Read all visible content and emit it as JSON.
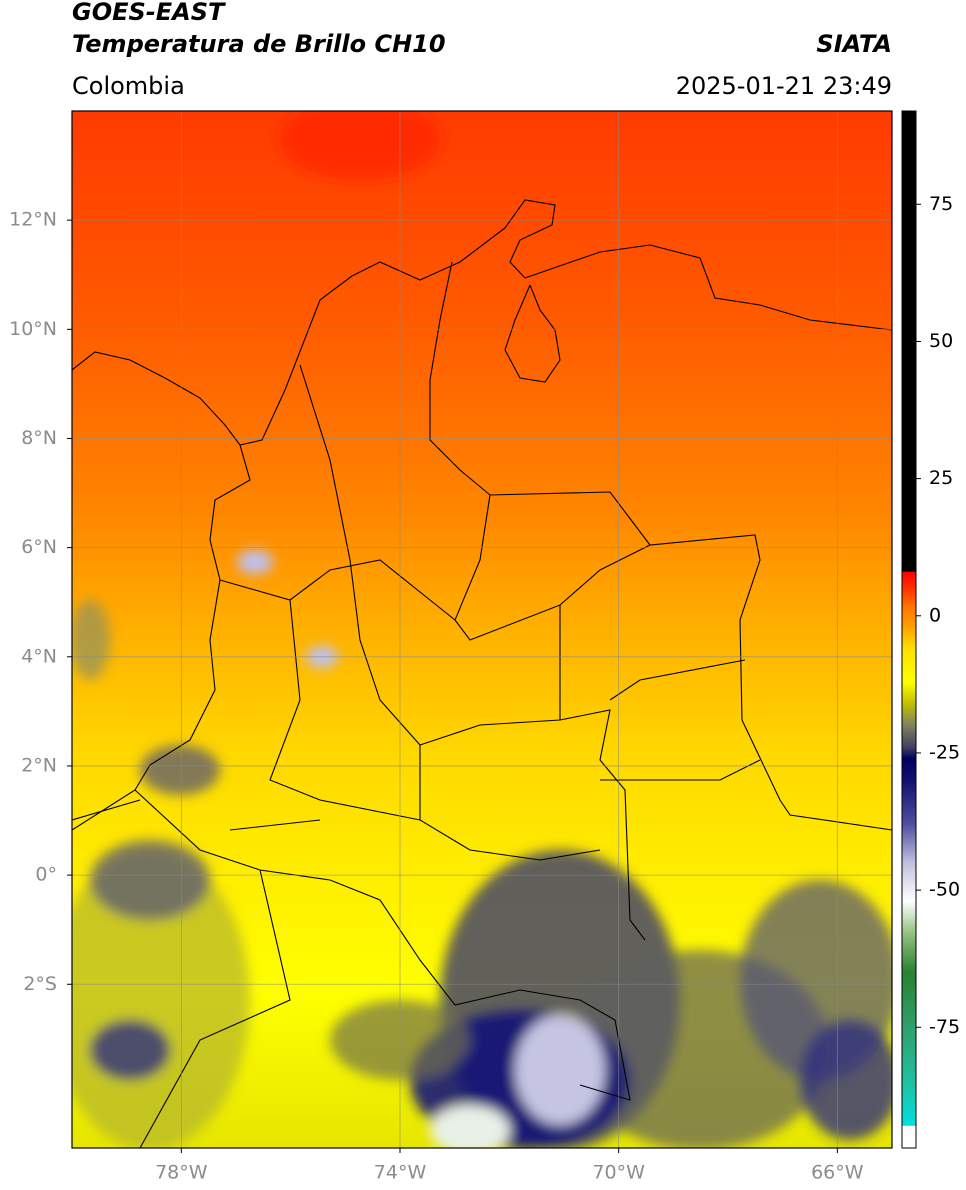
{
  "header": {
    "satellite": "GOES-EAST",
    "product": "Temperatura de Brillo CH10",
    "source": "SIATA",
    "region": "Colombia",
    "datetime": "2025-01-21 23:49"
  },
  "chart_data": {
    "type": "map",
    "xlim": [
      -80,
      -65
    ],
    "ylim": [
      -5,
      14
    ],
    "xticks": [
      {
        "value": -78,
        "label": "78°W"
      },
      {
        "value": -74,
        "label": "74°W"
      },
      {
        "value": -70,
        "label": "70°W"
      },
      {
        "value": -66,
        "label": "66°W"
      }
    ],
    "yticks": [
      {
        "value": 12,
        "label": "12°N"
      },
      {
        "value": 10,
        "label": "10°N"
      },
      {
        "value": 8,
        "label": "8°N"
      },
      {
        "value": 6,
        "label": "6°N"
      },
      {
        "value": 4,
        "label": "4°N"
      },
      {
        "value": 2,
        "label": "2°N"
      },
      {
        "value": 0,
        "label": "0°"
      },
      {
        "value": -2,
        "label": "2°S"
      }
    ],
    "grid": true,
    "colorbar": {
      "lim": [
        -97,
        92
      ],
      "ticks": [
        75,
        50,
        25,
        0,
        -25,
        -50,
        -75
      ],
      "colors": [
        {
          "value": -97,
          "color": "#ffffff"
        },
        {
          "value": -93,
          "color": "#ffffff"
        },
        {
          "value": -92.9,
          "color": "#00e0e0"
        },
        {
          "value": -85,
          "color": "#20c0a0"
        },
        {
          "value": -75,
          "color": "#30a070"
        },
        {
          "value": -65,
          "color": "#2a8030"
        },
        {
          "value": -58,
          "color": "#90c080"
        },
        {
          "value": -52,
          "color": "#ffffff"
        },
        {
          "value": -45,
          "color": "#c0c0e0"
        },
        {
          "value": -38,
          "color": "#5050a0"
        },
        {
          "value": -30,
          "color": "#101070"
        },
        {
          "value": -26,
          "color": "#000060"
        },
        {
          "value": -24,
          "color": "#404060"
        },
        {
          "value": -20,
          "color": "#808060"
        },
        {
          "value": -16,
          "color": "#c0c000"
        },
        {
          "value": -12,
          "color": "#ffff00"
        },
        {
          "value": -6,
          "color": "#ffe000"
        },
        {
          "value": -2,
          "color": "#ffa000"
        },
        {
          "value": 2,
          "color": "#ff7000"
        },
        {
          "value": 5,
          "color": "#ff3000"
        },
        {
          "value": 8,
          "color": "#ff0000"
        },
        {
          "value": 8.1,
          "color": "#000000"
        },
        {
          "value": 92,
          "color": "#000000"
        }
      ]
    }
  }
}
